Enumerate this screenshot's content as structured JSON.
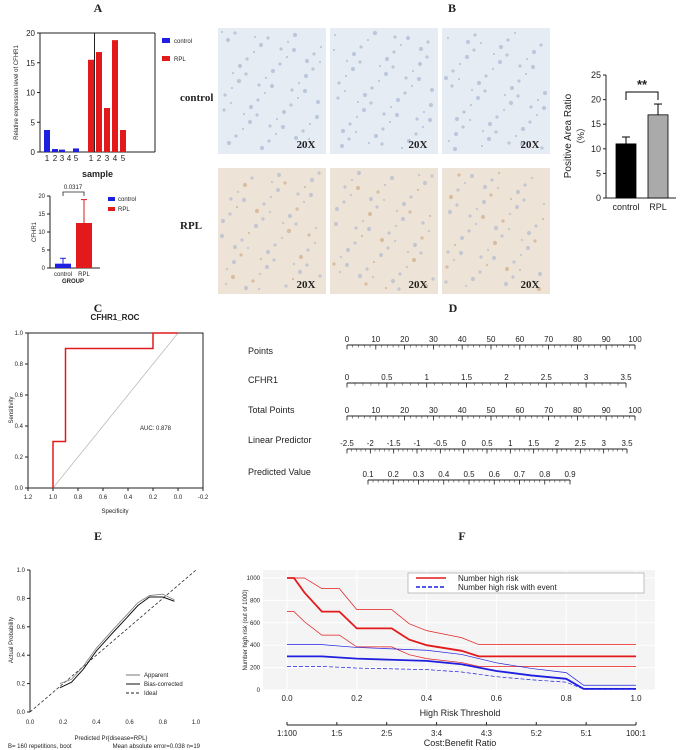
{
  "panel_labels": [
    "A",
    "B",
    "C",
    "D",
    "E",
    "F"
  ],
  "chart_data": [
    {
      "id": "A1",
      "type": "bar",
      "ylabel": "Relative expression level of CFHR1",
      "xlabel": "sample",
      "ylim": [
        0,
        20
      ],
      "yticks": [
        0,
        5,
        10,
        15,
        20
      ],
      "categories": [
        "1",
        "2",
        "3",
        "4",
        "5",
        "1",
        "2",
        "3",
        "4",
        "5"
      ],
      "series": [
        {
          "name": "control",
          "color": "#1f1fe0",
          "values": [
            3.7,
            0.5,
            0.4,
            0.0,
            0.6,
            null,
            null,
            null,
            null,
            null
          ]
        },
        {
          "name": "RPL",
          "color": "#e31a1c",
          "values": [
            null,
            null,
            null,
            null,
            null,
            15.5,
            16.8,
            7.4,
            18.8,
            3.7
          ]
        }
      ]
    },
    {
      "id": "A2",
      "type": "bar",
      "ylabel": "CFHR1",
      "xlabel": "GROUP",
      "ylim": [
        0,
        20
      ],
      "yticks": [
        0,
        5,
        10,
        15,
        20
      ],
      "categories": [
        "control",
        "RPL"
      ],
      "values": [
        1.2,
        12.5
      ],
      "errors": [
        1.5,
        6.5
      ],
      "colors": [
        "#1f1fe0",
        "#e31a1c"
      ],
      "legend": [
        "control",
        "RPL"
      ],
      "pvalue": "0.0317"
    },
    {
      "id": "B",
      "type": "bar",
      "ylabel": "Positive Area Ratio",
      "ylabel2": "（%）",
      "ylim": [
        0,
        25
      ],
      "yticks": [
        0,
        5,
        10,
        15,
        20,
        25
      ],
      "categories": [
        "control",
        "RPL"
      ],
      "values": [
        11.0,
        16.9
      ],
      "errors": [
        1.4,
        2.2
      ],
      "colors": [
        "#000000",
        "#aaaaaa"
      ],
      "significance": "**",
      "row_labels": [
        "control",
        "RPL"
      ],
      "magnification": [
        "20X",
        "20X",
        "20X",
        "20X",
        "20X",
        "20X"
      ]
    },
    {
      "id": "C",
      "type": "line",
      "title": "CFHR1_ROC",
      "xlabel": "Specificity",
      "ylabel": "Sensitivity",
      "xlim": [
        1.2,
        -0.2
      ],
      "ylim": [
        0,
        1
      ],
      "xticks": [
        "1.2",
        "1.0",
        "0.8",
        "0.6",
        "0.4",
        "0.2",
        "0.0",
        "-0.2"
      ],
      "yticks": [
        "0.0",
        "0.2",
        "0.4",
        "0.6",
        "0.8",
        "1.0"
      ],
      "roc": {
        "x": [
          1.0,
          1.0,
          0.9,
          0.9,
          0.2,
          0.2,
          0.0
        ],
        "y": [
          0.0,
          0.3,
          0.3,
          0.9,
          0.9,
          1.0,
          1.0
        ]
      },
      "auc_label": "AUC: 0.878"
    },
    {
      "id": "D",
      "type": "nomogram",
      "rows": [
        {
          "label": "Points",
          "ticks": [
            "0",
            "10",
            "20",
            "30",
            "40",
            "50",
            "60",
            "70",
            "80",
            "90",
            "100"
          ]
        },
        {
          "label": "CFHR1",
          "ticks": [
            "0",
            "0.5",
            "1",
            "1.5",
            "2",
            "2.5",
            "3",
            "3.5"
          ]
        },
        {
          "label": "Total Points",
          "ticks": [
            "0",
            "10",
            "20",
            "30",
            "40",
            "50",
            "60",
            "70",
            "80",
            "90",
            "100"
          ]
        },
        {
          "label": "Linear Predictor",
          "ticks": [
            "-2.5",
            "-2",
            "-1.5",
            "-1",
            "-0.5",
            "0",
            "0.5",
            "1",
            "1.5",
            "2",
            "2.5",
            "3",
            "3.5"
          ]
        },
        {
          "label": "Predicted Value",
          "ticks": [
            "0.1",
            "0.2",
            "0.3",
            "0.4",
            "0.5",
            "0.6",
            "0.7",
            "0.8",
            "0.9"
          ]
        }
      ]
    },
    {
      "id": "E",
      "type": "line",
      "xlabel": "Predicted Pr{disease=RPL}",
      "ylabel": "Actual Probability",
      "xlim": [
        0,
        1
      ],
      "ylim": [
        0,
        1
      ],
      "xticks": [
        "0.0",
        "0.2",
        "0.4",
        "0.6",
        "0.8",
        "1.0"
      ],
      "yticks": [
        "0.0",
        "0.2",
        "0.4",
        "0.6",
        "0.8",
        "1.0"
      ],
      "legend": [
        "Apparent",
        "Bias-corrected",
        "Ideal"
      ],
      "footnote_left": "B= 160 repetitions, boot",
      "footnote_right": "Mean absolute error=0.038 n=19",
      "series": [
        {
          "name": "Apparent",
          "x": [
            0.18,
            0.25,
            0.32,
            0.4,
            0.5,
            0.58,
            0.65,
            0.72,
            0.8,
            0.87
          ],
          "y": [
            0.2,
            0.23,
            0.32,
            0.45,
            0.58,
            0.68,
            0.77,
            0.82,
            0.83,
            0.79
          ]
        },
        {
          "name": "Bias-corrected",
          "x": [
            0.18,
            0.25,
            0.32,
            0.4,
            0.5,
            0.58,
            0.65,
            0.72,
            0.8,
            0.87
          ],
          "y": [
            0.17,
            0.21,
            0.3,
            0.43,
            0.56,
            0.66,
            0.75,
            0.81,
            0.81,
            0.78
          ]
        }
      ]
    },
    {
      "id": "F",
      "type": "line",
      "xlabel": "High Risk Threshold",
      "ylabel": "Number high risk (out of 1000)",
      "xlabel2": "Cost:Benefit Ratio",
      "xlim": [
        0,
        1
      ],
      "ylim": [
        0,
        1000
      ],
      "xticks": [
        "0.0",
        "0.2",
        "0.4",
        "0.6",
        "0.8",
        "1.0"
      ],
      "yticks": [
        "0",
        "200",
        "400",
        "600",
        "800",
        "1000"
      ],
      "cb_ticks": [
        "1:100",
        "1:5",
        "2:5",
        "3:4",
        "4:3",
        "5:2",
        "5:1",
        "100:1"
      ],
      "legend": [
        "Number high risk",
        "Number high risk with event"
      ],
      "series": [
        {
          "name": "Number high risk",
          "x": [
            0.0,
            0.02,
            0.05,
            0.1,
            0.15,
            0.2,
            0.3,
            0.35,
            0.4,
            0.5,
            0.55,
            0.6,
            0.7,
            0.8,
            1.0
          ],
          "y": [
            1000,
            1000,
            870,
            700,
            700,
            550,
            550,
            450,
            400,
            350,
            300,
            300,
            300,
            300,
            300
          ]
        },
        {
          "name": "Number high risk with event",
          "x": [
            0.0,
            0.05,
            0.1,
            0.2,
            0.3,
            0.4,
            0.5,
            0.6,
            0.7,
            0.8,
            0.85,
            1.0
          ],
          "y": [
            300,
            300,
            300,
            280,
            270,
            260,
            230,
            170,
            130,
            100,
            10,
            10
          ]
        }
      ]
    }
  ]
}
